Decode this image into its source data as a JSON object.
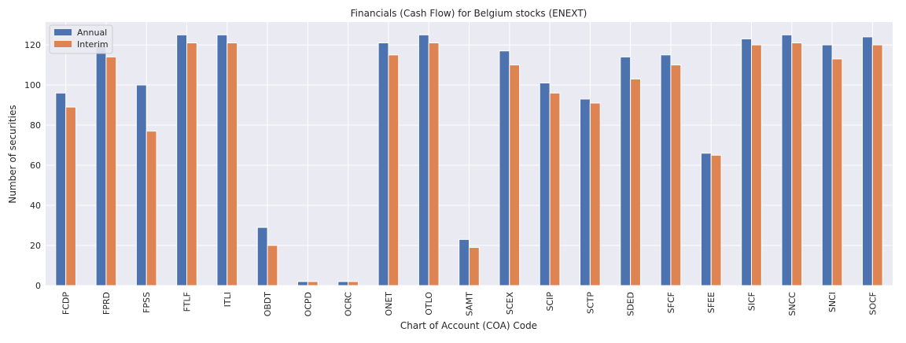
{
  "chart_data": {
    "type": "bar",
    "title": "Financials (Cash Flow) for Belgium stocks (ENEXT)",
    "xlabel": "Chart of Account (COA) Code",
    "ylabel": "Number of securities",
    "ylim": [
      0,
      131.4
    ],
    "yticks": [
      0,
      20,
      40,
      60,
      80,
      100,
      120
    ],
    "grid": true,
    "legend_position": "top-left",
    "categories": [
      "FCDP",
      "FPRD",
      "FPSS",
      "FTLF",
      "ITLI",
      "OBDT",
      "OCPD",
      "OCRC",
      "ONET",
      "OTLO",
      "SAMT",
      "SCEX",
      "SCIP",
      "SCTP",
      "SDED",
      "SFCF",
      "SFEE",
      "SICF",
      "SNCC",
      "SNCI",
      "SOCF"
    ],
    "series": [
      {
        "name": "Annual",
        "color": "#4c72b0",
        "values": [
          96,
          120,
          100,
          125,
          125,
          29,
          2,
          2,
          121,
          125,
          23,
          117,
          101,
          93,
          114,
          115,
          66,
          123,
          125,
          120,
          124
        ]
      },
      {
        "name": "Interim",
        "color": "#dd8452",
        "values": [
          89,
          114,
          77,
          121,
          121,
          20,
          2,
          2,
          115,
          121,
          19,
          110,
          96,
          91,
          103,
          110,
          65,
          120,
          121,
          113,
          120
        ]
      }
    ]
  }
}
